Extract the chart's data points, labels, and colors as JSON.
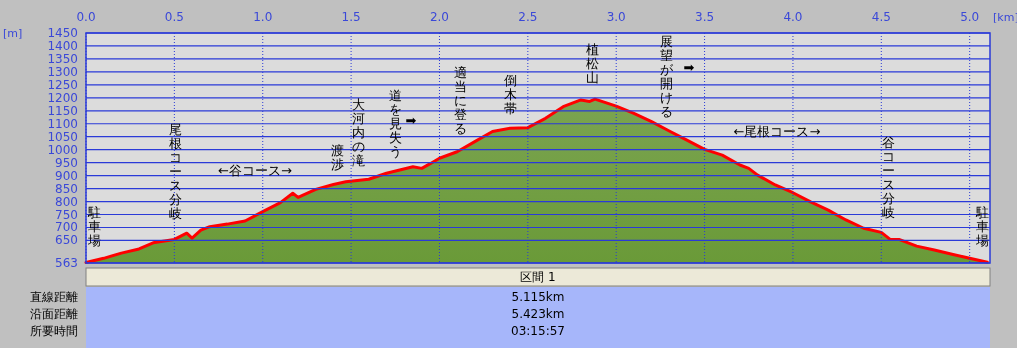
{
  "chart_data": {
    "type": "area",
    "xlabel": "[km]",
    "ylabel": "[m]",
    "x": [
      0,
      0.1,
      0.2,
      0.3,
      0.38,
      0.5,
      0.57,
      0.6,
      0.65,
      0.7,
      0.8,
      0.9,
      1.0,
      1.1,
      1.17,
      1.2,
      1.3,
      1.4,
      1.47,
      1.6,
      1.7,
      1.85,
      1.9,
      1.95,
      2.0,
      2.1,
      2.2,
      2.3,
      2.4,
      2.5,
      2.6,
      2.7,
      2.8,
      2.85,
      2.88,
      3.0,
      3.1,
      3.2,
      3.3,
      3.4,
      3.5,
      3.6,
      3.7,
      3.75,
      3.8,
      3.9,
      4.0,
      4.1,
      4.2,
      4.3,
      4.4,
      4.5,
      4.55,
      4.6,
      4.7,
      4.8,
      4.9,
      5.0,
      5.1
    ],
    "series": [
      {
        "color": "#6a9a38",
        "values": [
          565,
          581,
          601,
          617,
          641,
          654,
          678,
          659,
          690,
          703,
          713,
          725,
          761,
          796,
          832,
          816,
          847,
          866,
          876,
          886,
          909,
          934,
          928,
          947,
          967,
          992,
          1031,
          1070,
          1083,
          1085,
          1121,
          1166,
          1192,
          1186,
          1195,
          1168,
          1140,
          1108,
          1072,
          1037,
          1001,
          979,
          941,
          928,
          902,
          864,
          834,
          799,
          767,
          729,
          697,
          681,
          654,
          654,
          628,
          613,
          597,
          581,
          566
        ]
      }
    ],
    "xlim": [
      0,
      5.115
    ],
    "ylim": [
      563,
      1450
    ],
    "xticks": [
      {
        "value": 0,
        "label": "0.0"
      },
      {
        "value": 0.5,
        "label": "0.5"
      },
      {
        "value": 1,
        "label": "1.0"
      },
      {
        "value": 1.5,
        "label": "1.5"
      },
      {
        "value": 2,
        "label": "2.0"
      },
      {
        "value": 2.5,
        "label": "2.5"
      },
      {
        "value": 3,
        "label": "3.0"
      },
      {
        "value": 3.5,
        "label": "3.5"
      },
      {
        "value": 4,
        "label": "4.0"
      },
      {
        "value": 4.5,
        "label": "4.5"
      },
      {
        "value": 5,
        "label": "5.0"
      }
    ],
    "yticks": [
      563,
      650,
      700,
      750,
      800,
      850,
      900,
      950,
      1000,
      1050,
      1100,
      1150,
      1200,
      1250,
      1300,
      1350,
      1400,
      1450
    ],
    "grid": true,
    "annotations": [
      "駐車場",
      "尾根コース分岐",
      "←谷コース→",
      "渡渉",
      "大河内の滝",
      "道を見失う",
      "➡",
      "適当に登る",
      "倒木帯",
      "植松山",
      "展望が開ける",
      "➡",
      "←尾根コース→",
      "谷コース分岐",
      "駐車場",
      "区間 1",
      "直線距離",
      "5.115km",
      "沿面距離",
      "5.423km",
      "所要時間",
      "03:15:57"
    ]
  }
}
